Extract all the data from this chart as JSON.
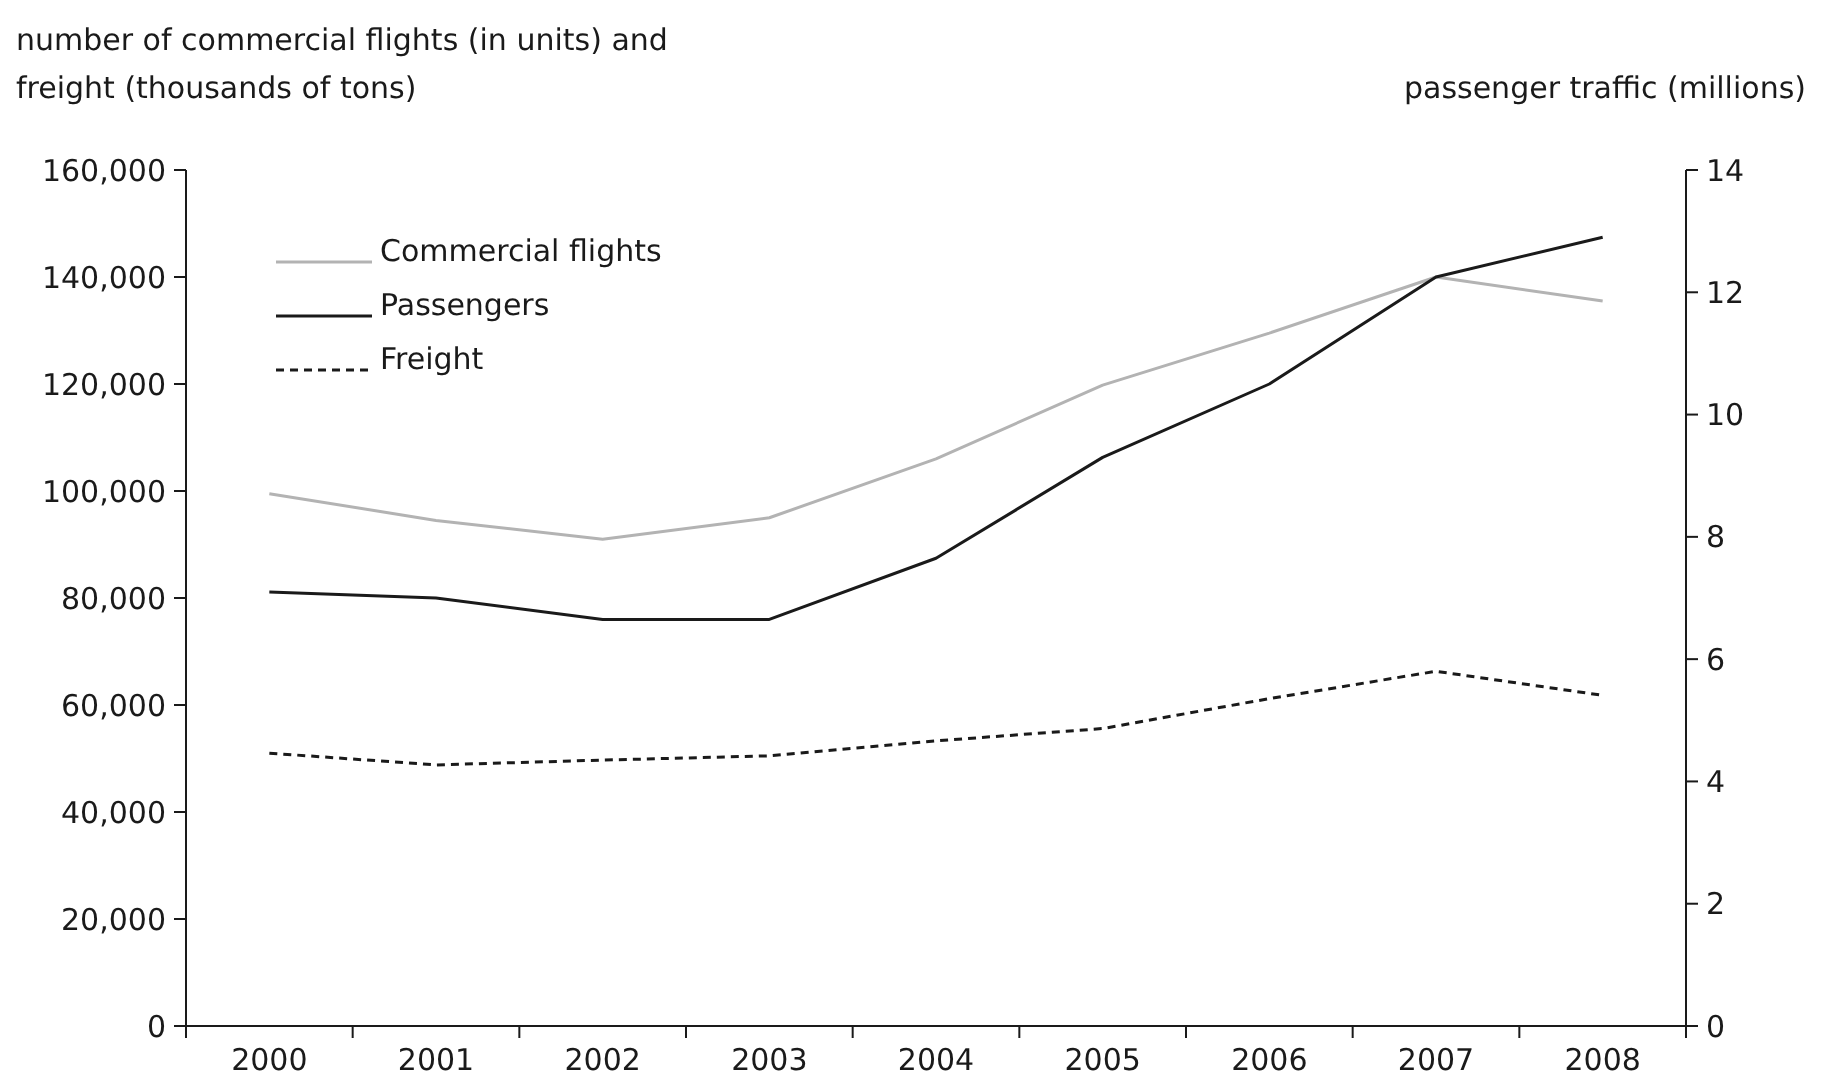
{
  "chart_data": {
    "type": "line",
    "ylabel": "number of commercial flights (in units) and freight (thousands of tons)",
    "y2label": "passenger traffic (millions)",
    "categories": [
      "2000",
      "2001",
      "2002",
      "2003",
      "2004",
      "2005",
      "2006",
      "2007",
      "2008"
    ],
    "series": [
      {
        "name": "Commercial flights",
        "color": "#b3b3b3",
        "values": [
          99500,
          94500,
          91000,
          95000,
          106000,
          119800,
          129500,
          140000,
          135500
        ]
      },
      {
        "name": "Passengers",
        "color": "#1a1a1a",
        "axis": "y2",
        "values": [
          7.1,
          7.0,
          6.65,
          6.65,
          7.65,
          9.3,
          10.5,
          12.25,
          12.9
        ]
      },
      {
        "name": "Freight",
        "color": "#1a1a1a",
        "line_style": "dashed",
        "values": [
          51000,
          48800,
          49700,
          50500,
          53300,
          55600,
          61200,
          66300,
          61800
        ]
      }
    ],
    "ylim": [
      0,
      160000
    ],
    "yticks": [
      {
        "value": 0,
        "label": "0"
      },
      {
        "value": 20000,
        "label": "20,000"
      },
      {
        "value": 40000,
        "label": "40,000"
      },
      {
        "value": 60000,
        "label": "60,000"
      },
      {
        "value": 80000,
        "label": "80,000"
      },
      {
        "value": 100000,
        "label": "100,000"
      },
      {
        "value": 120000,
        "label": "120,000"
      },
      {
        "value": 140000,
        "label": "140,000"
      },
      {
        "value": 160000,
        "label": "160,000"
      }
    ],
    "y2lim": [
      0,
      14
    ],
    "y2ticks": [
      0,
      2,
      4,
      6,
      8,
      10,
      12,
      14
    ],
    "legend": "top left",
    "marker": "none"
  }
}
